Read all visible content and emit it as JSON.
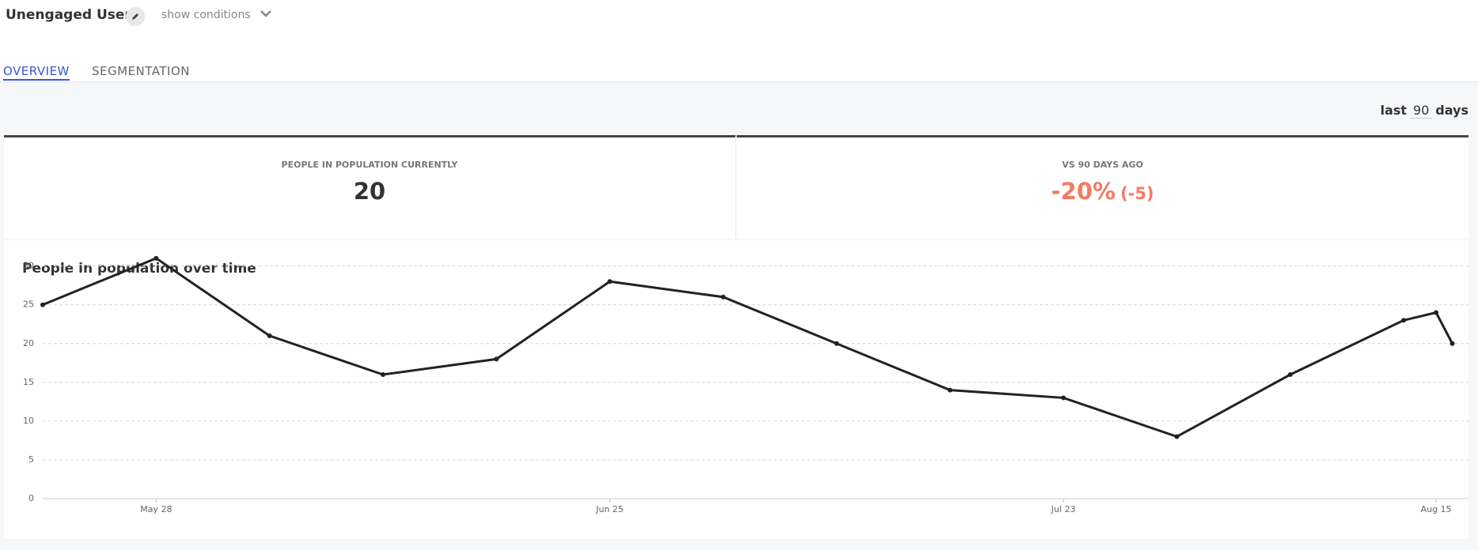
{
  "header": {
    "title": "Unengaged Users",
    "conditions_toggle": "show conditions"
  },
  "tabs": [
    "OVERVIEW",
    "SEGMENTATION"
  ],
  "range": {
    "prefix": "last",
    "days": 90,
    "suffix": "days"
  },
  "stats": [
    {
      "label": "PEOPLE IN POPULATION CURRENTLY",
      "value": 20
    },
    {
      "label": "VS 90 DAYS AGO",
      "value": "-20%",
      "change": "(-5)"
    }
  ],
  "chart_data": {
    "type": "line",
    "title": "People in population over time",
    "x": [
      "05-21",
      "05-28",
      "06-04",
      "06-11",
      "06-18",
      "06-25",
      "07-02",
      "07-09",
      "07-16",
      "07-23",
      "07-30",
      "08-06",
      "08-13",
      "08-15",
      "08-16"
    ],
    "values": [
      25,
      31,
      21,
      16,
      18,
      28,
      26,
      20,
      14,
      13,
      8,
      16,
      23,
      24,
      20
    ],
    "color": "#222222",
    "xlim": [
      "05-21",
      "08-17"
    ],
    "xticks": [
      {
        "value": "05-28",
        "label": "May 28"
      },
      {
        "value": "06-25",
        "label": "Jun 25"
      },
      {
        "value": "07-23",
        "label": "Jul 23"
      },
      {
        "value": "08-15",
        "label": "Aug 15"
      }
    ],
    "ylim": [
      0,
      32
    ],
    "yticks": [
      0,
      5,
      10,
      15,
      20,
      25,
      30
    ],
    "grid": true
  }
}
